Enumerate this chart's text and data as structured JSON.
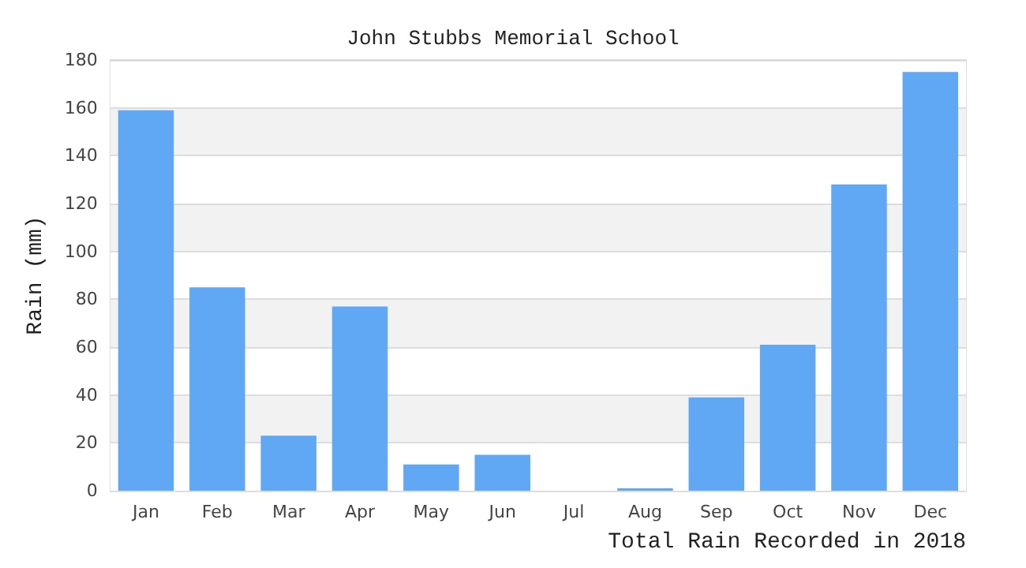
{
  "chart_data": {
    "type": "bar",
    "title": "John Stubbs Memorial School",
    "xlabel": "Total Rain Recorded in 2018",
    "ylabel": "Rain (mm)",
    "categories": [
      "Jan",
      "Feb",
      "Mar",
      "Apr",
      "May",
      "Jun",
      "Jul",
      "Aug",
      "Sep",
      "Oct",
      "Nov",
      "Dec"
    ],
    "values": [
      159,
      85,
      23,
      77,
      11,
      15,
      0,
      1,
      39,
      61,
      128,
      175
    ],
    "color": "#60a8f4",
    "ylim": [
      0,
      180
    ],
    "yticks": [
      0,
      20,
      40,
      60,
      80,
      100,
      120,
      140,
      160,
      180
    ],
    "grid": true
  }
}
